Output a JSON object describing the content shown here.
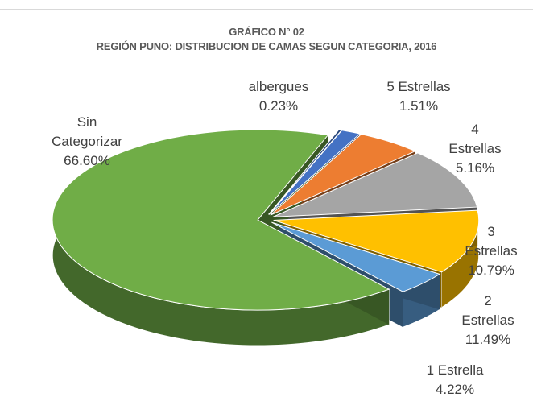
{
  "chart_data": {
    "type": "pie3d",
    "title": "GRÁFICO N° 02",
    "subtitle": "REGIÓN PUNO: DISTRIBUCION DE CAMAS SEGUN CATEGORIA, 2016",
    "categories": [
      "albergues",
      "5 Estrellas",
      "4 Estrellas",
      "3 Estrellas",
      "2 Estrellas",
      "1 Estrella",
      "Sin Categorizar"
    ],
    "values": [
      0.23,
      1.51,
      5.16,
      10.79,
      11.49,
      4.22,
      66.6
    ],
    "value_labels": [
      "0.23%",
      "1.51%",
      "5.16%",
      "10.79%",
      "11.49%",
      "4.22%",
      "66.60%"
    ],
    "colors": [
      "#264478",
      "#4472c4",
      "#ed7d31",
      "#a5a5a5",
      "#ffc000",
      "#5b9bd5",
      "#70ad47"
    ]
  }
}
